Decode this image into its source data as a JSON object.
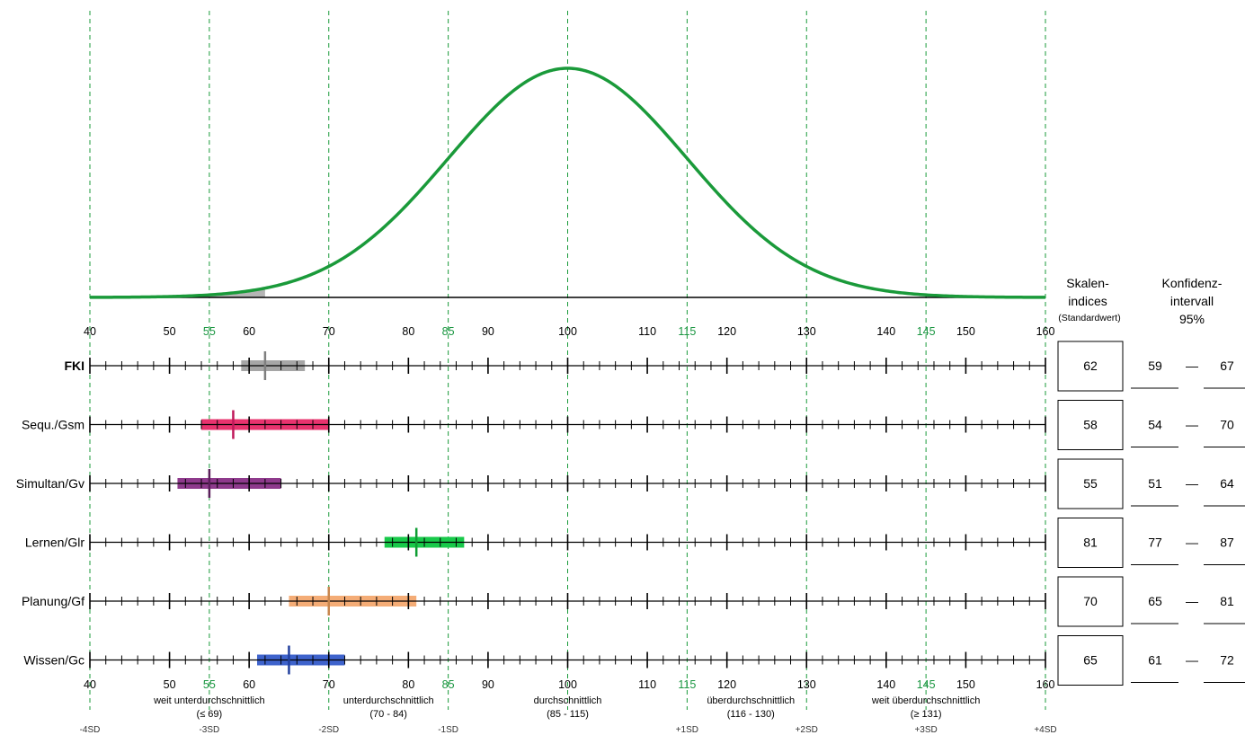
{
  "chart_data": {
    "type": "profile-bar-with-normal-curve",
    "x_range": [
      40,
      160
    ],
    "major_ticks": [
      40,
      50,
      60,
      70,
      80,
      90,
      100,
      110,
      120,
      130,
      140,
      150,
      160
    ],
    "highlight_ticks": [
      55,
      85,
      115,
      145
    ],
    "curve": {
      "mean": 100,
      "sd": 15,
      "color": "#1a9a3a",
      "shaded_to": 62,
      "shade_color": "#b5b5b5"
    },
    "sd_lines": [
      40,
      55,
      70,
      85,
      100,
      115,
      130,
      145,
      160
    ],
    "sd_labels": [
      {
        "x": 40,
        "label": "-4SD"
      },
      {
        "x": 55,
        "label": "-3SD"
      },
      {
        "x": 70,
        "label": "-2SD"
      },
      {
        "x": 85,
        "label": "-1SD"
      },
      {
        "x": 115,
        "label": "+1SD"
      },
      {
        "x": 130,
        "label": "+2SD"
      },
      {
        "x": 145,
        "label": "+3SD"
      },
      {
        "x": 160,
        "label": "+4SD"
      }
    ],
    "categories": [
      {
        "x": 55,
        "line1": "weit unterdurchschnittlich",
        "line2": "(≤ 69)"
      },
      {
        "x": 77.5,
        "line1": "unterdurchschnittlich",
        "line2": "(70 - 84)"
      },
      {
        "x": 100,
        "line1": "durchschnittlich",
        "line2": "(85 - 115)"
      },
      {
        "x": 123,
        "line1": "überdurchschnittlich",
        "line2": "(116 - 130)"
      },
      {
        "x": 145,
        "line1": "weit überdurchschnittlich",
        "line2": "(≥ 131)"
      }
    ],
    "scales": [
      {
        "name": "FKI",
        "bold": true,
        "value": 62,
        "ci": [
          59,
          67
        ],
        "color": "#a6a6a6",
        "marker_color": "#7f7f7f",
        "ci_text": [
          "59",
          "—",
          "67"
        ]
      },
      {
        "name": "Sequ./Gsm",
        "bold": false,
        "value": 58,
        "ci": [
          54,
          70
        ],
        "color": "#e8336e",
        "marker_color": "#c0185a",
        "ci_text": [
          "54",
          "—",
          "70"
        ]
      },
      {
        "name": "Simultan/Gv",
        "bold": false,
        "value": 55,
        "ci": [
          51,
          64
        ],
        "color": "#8e3a8c",
        "marker_color": "#5a1f5a",
        "ci_text": [
          "51",
          "—",
          "64"
        ]
      },
      {
        "name": "Lernen/Glr",
        "bold": false,
        "value": 81,
        "ci": [
          77,
          87
        ],
        "color": "#18c94a",
        "marker_color": "#0f9e34",
        "ci_text": [
          "77",
          "—",
          "87"
        ]
      },
      {
        "name": "Planung/Gf",
        "bold": false,
        "value": 70,
        "ci": [
          65,
          81
        ],
        "color": "#f4ac76",
        "marker_color": "#c8864e",
        "ci_text": [
          "65",
          "—",
          "81"
        ]
      },
      {
        "name": "Wissen/Gc",
        "bold": false,
        "value": 65,
        "ci": [
          61,
          72
        ],
        "color": "#3e63cc",
        "marker_color": "#22409e",
        "ci_text": [
          "61",
          "—",
          "72"
        ]
      }
    ],
    "headers": {
      "skalen_line1": "Skalen-",
      "skalen_line2": "indices",
      "skalen_line3": "(Standardwert)",
      "konf_line1": "Konfidenz-",
      "konf_line2": "intervall",
      "konf_line3": "95%"
    }
  }
}
